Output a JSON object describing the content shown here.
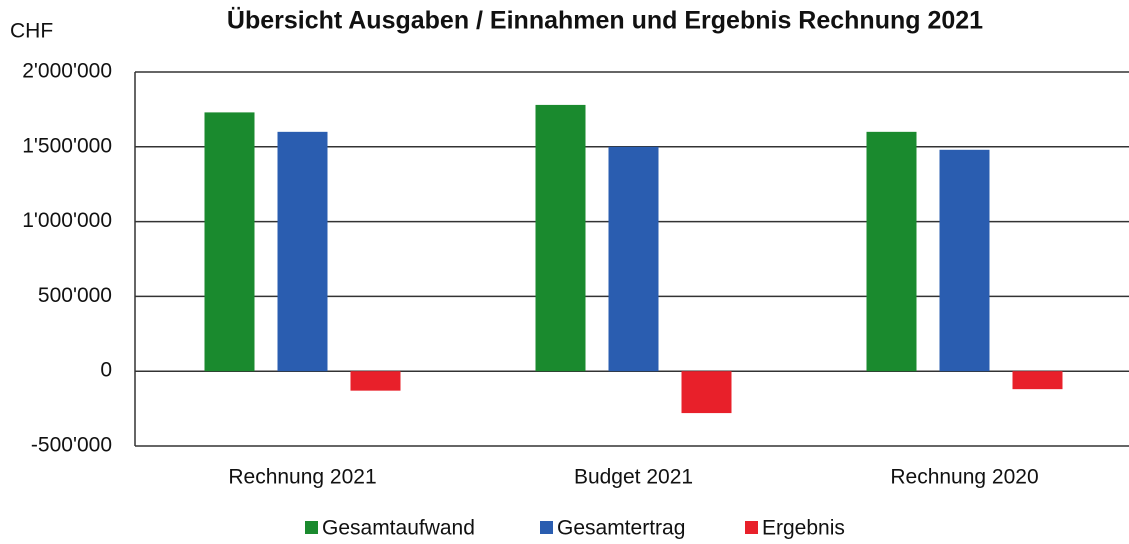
{
  "chart_data": {
    "type": "bar",
    "title": "Übersicht Ausgaben / Einnahmen und Ergebnis Rechnung 2021",
    "y_label": "CHF",
    "categories": [
      "Rechnung 2021",
      "Budget 2021",
      "Rechnung 2020"
    ],
    "series": [
      {
        "name": "Gesamtaufwand",
        "color": "#1a8a2e",
        "values": [
          1730000,
          1780000,
          1600000
        ]
      },
      {
        "name": "Gesamtertrag",
        "color": "#2a5db0",
        "values": [
          1600000,
          1500000,
          1480000
        ]
      },
      {
        "name": "Ergebnis",
        "color": "#e8202a",
        "values": [
          -130000,
          -280000,
          -120000
        ]
      }
    ],
    "ylim": [
      -500000,
      2000000
    ],
    "yticks": [
      {
        "value": -500000,
        "label": "-500'000"
      },
      0,
      {
        "value": 500000,
        "label": "500'000"
      },
      {
        "value": 1000000,
        "label": "1'000'000"
      },
      {
        "value": 1500000,
        "label": "1'500'000"
      },
      {
        "value": 2000000,
        "label": "2'000'000"
      }
    ],
    "grid": true,
    "legend": "bottom"
  }
}
